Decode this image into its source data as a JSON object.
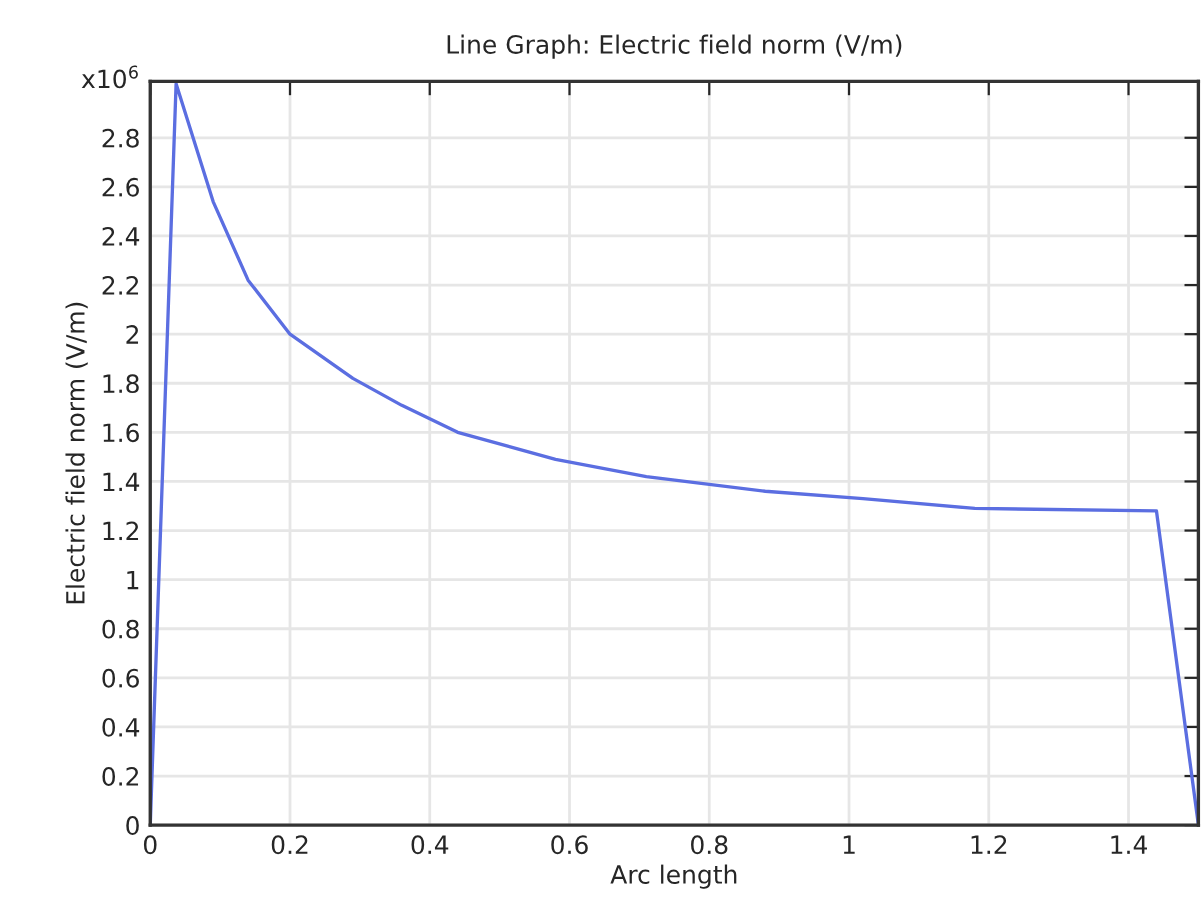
{
  "chart_data": {
    "type": "line",
    "title": "Line Graph: Electric field norm (V/m)",
    "xlabel": "Arc length",
    "ylabel": "Electric field norm (V/m)",
    "annotations": [
      "x10$^{6}$"
    ],
    "x": [
      0,
      0.037,
      0.09,
      0.14,
      0.2,
      0.29,
      0.36,
      0.44,
      0.58,
      0.71,
      0.88,
      1.02,
      1.18,
      1.44,
      1.5
    ],
    "series": [
      {
        "color": "#5b6ee1",
        "values": [
          0,
          3.02,
          2.54,
          2.22,
          2.0,
          1.82,
          1.71,
          1.6,
          1.49,
          1.42,
          1.36,
          1.33,
          1.29,
          1.28,
          0
        ]
      }
    ],
    "xlim": [
      0,
      1.5
    ],
    "ylim": [
      0,
      3.03
    ],
    "xticks": [
      0,
      0.2,
      0.4,
      0.6,
      0.8,
      1,
      1.2,
      1.4
    ],
    "yticks": [
      0,
      0.2,
      0.4,
      0.6,
      0.8,
      1,
      1.2,
      1.4,
      1.6,
      1.8,
      2,
      2.2,
      2.4,
      2.6,
      2.8
    ],
    "grid": true,
    "marker": "none",
    "line_style": "solid"
  }
}
